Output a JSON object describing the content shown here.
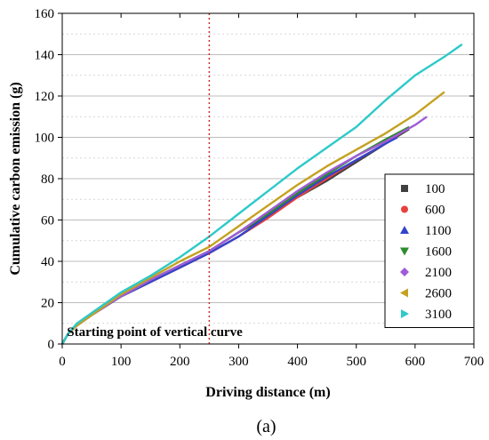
{
  "chart_data": {
    "type": "line",
    "xlabel": "Driving distance (m)",
    "ylabel": "Cumulative carbon emission (g)",
    "xlim": [
      0,
      700
    ],
    "ylim": [
      0,
      160
    ],
    "x_ticks": [
      0,
      100,
      200,
      300,
      400,
      500,
      600,
      700
    ],
    "y_ticks": [
      0,
      20,
      40,
      60,
      80,
      100,
      120,
      140,
      160
    ],
    "grid": "horizontal",
    "legend_position": "right",
    "caption": "(a)",
    "annotation": {
      "text": "Starting point of vertical curve",
      "x": 250
    },
    "series": [
      {
        "name": "100",
        "color": "#404040",
        "marker": "square",
        "points": [
          [
            0,
            0
          ],
          [
            10,
            5
          ],
          [
            25,
            9
          ],
          [
            50,
            14
          ],
          [
            100,
            23
          ],
          [
            150,
            31
          ],
          [
            200,
            38
          ],
          [
            250,
            45
          ],
          [
            300,
            54
          ],
          [
            350,
            62
          ],
          [
            400,
            71
          ],
          [
            450,
            79
          ],
          [
            500,
            88
          ],
          [
            550,
            97
          ],
          [
            590,
            104
          ]
        ]
      },
      {
        "name": "600",
        "color": "#e8413c",
        "marker": "circle",
        "points": [
          [
            0,
            0
          ],
          [
            10,
            5
          ],
          [
            25,
            9
          ],
          [
            50,
            14
          ],
          [
            100,
            23
          ],
          [
            150,
            30
          ],
          [
            200,
            37
          ],
          [
            250,
            44
          ],
          [
            300,
            52
          ],
          [
            350,
            61
          ],
          [
            400,
            71
          ],
          [
            450,
            80
          ],
          [
            500,
            89
          ],
          [
            550,
            97
          ],
          [
            580,
            103
          ]
        ]
      },
      {
        "name": "1100",
        "color": "#3344cc",
        "marker": "triangle-up",
        "points": [
          [
            0,
            0
          ],
          [
            10,
            5
          ],
          [
            25,
            9
          ],
          [
            50,
            14
          ],
          [
            100,
            23
          ],
          [
            150,
            30
          ],
          [
            200,
            37
          ],
          [
            250,
            44
          ],
          [
            300,
            52
          ],
          [
            350,
            62
          ],
          [
            400,
            72
          ],
          [
            450,
            81
          ],
          [
            500,
            89
          ],
          [
            550,
            97
          ],
          [
            570,
            100
          ]
        ]
      },
      {
        "name": "1600",
        "color": "#2e8b2e",
        "marker": "triangle-down",
        "points": [
          [
            0,
            0
          ],
          [
            10,
            5
          ],
          [
            25,
            9
          ],
          [
            50,
            14
          ],
          [
            100,
            23
          ],
          [
            150,
            31
          ],
          [
            200,
            38
          ],
          [
            250,
            45
          ],
          [
            300,
            54
          ],
          [
            350,
            63
          ],
          [
            400,
            73
          ],
          [
            450,
            82
          ],
          [
            500,
            91
          ],
          [
            550,
            99
          ],
          [
            590,
            105
          ]
        ]
      },
      {
        "name": "2100",
        "color": "#a05cd6",
        "marker": "diamond",
        "points": [
          [
            0,
            0
          ],
          [
            10,
            5
          ],
          [
            25,
            9
          ],
          [
            50,
            14
          ],
          [
            100,
            23
          ],
          [
            150,
            31
          ],
          [
            200,
            38
          ],
          [
            250,
            45
          ],
          [
            300,
            54
          ],
          [
            350,
            64
          ],
          [
            400,
            74
          ],
          [
            450,
            83
          ],
          [
            500,
            91
          ],
          [
            550,
            98
          ],
          [
            600,
            106
          ],
          [
            620,
            110
          ]
        ]
      },
      {
        "name": "2600",
        "color": "#c4a11f",
        "marker": "triangle-left",
        "points": [
          [
            0,
            0
          ],
          [
            10,
            5
          ],
          [
            25,
            9
          ],
          [
            50,
            14
          ],
          [
            100,
            24
          ],
          [
            150,
            32
          ],
          [
            200,
            40
          ],
          [
            250,
            47
          ],
          [
            300,
            57
          ],
          [
            350,
            67
          ],
          [
            400,
            77
          ],
          [
            450,
            86
          ],
          [
            500,
            94
          ],
          [
            550,
            102
          ],
          [
            600,
            111
          ],
          [
            650,
            122
          ]
        ]
      },
      {
        "name": "3100",
        "color": "#2ec9c9",
        "marker": "triangle-right",
        "points": [
          [
            0,
            0
          ],
          [
            10,
            5
          ],
          [
            25,
            10
          ],
          [
            50,
            15
          ],
          [
            100,
            25
          ],
          [
            150,
            33
          ],
          [
            200,
            42
          ],
          [
            250,
            52
          ],
          [
            300,
            63
          ],
          [
            350,
            74
          ],
          [
            400,
            85
          ],
          [
            450,
            95
          ],
          [
            500,
            105
          ],
          [
            550,
            118
          ],
          [
            600,
            130
          ],
          [
            650,
            139
          ],
          [
            680,
            145
          ]
        ]
      }
    ]
  }
}
